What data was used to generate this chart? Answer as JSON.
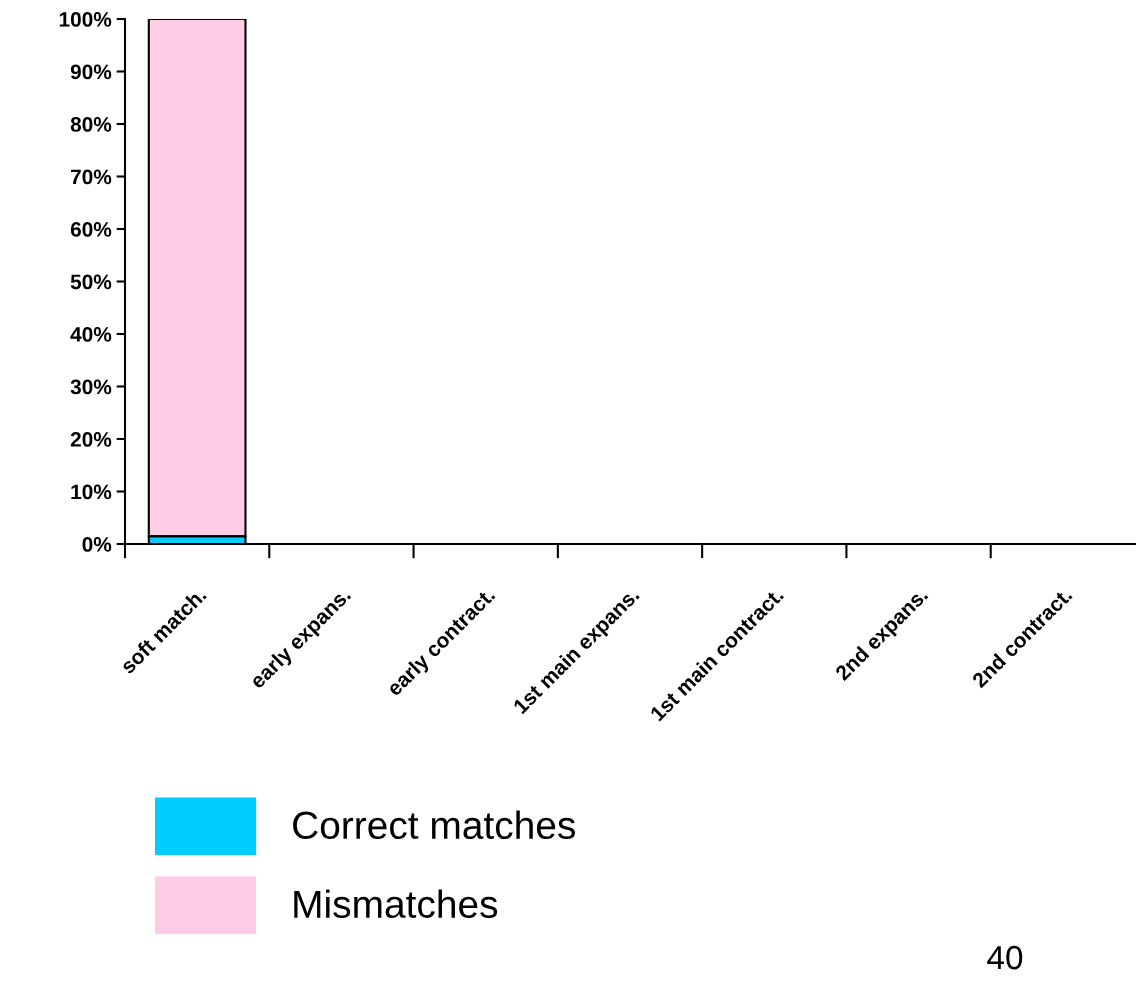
{
  "chart_data": {
    "type": "bar",
    "stacked": true,
    "categories": [
      "soft match.",
      "early expans.",
      "early contract.",
      "1st main expans.",
      "1st main contract.",
      "2nd expans.",
      "2nd contract."
    ],
    "series": [
      {
        "name": "Correct matches",
        "color": "#00ccff",
        "values": [
          1.5,
          null,
          null,
          null,
          null,
          null,
          null
        ]
      },
      {
        "name": "Mismatches",
        "color": "#ffcce6",
        "values": [
          98.5,
          null,
          null,
          null,
          null,
          null,
          null
        ]
      }
    ],
    "ylim": [
      0,
      100
    ],
    "yticks": [
      {
        "value": 0,
        "label": "0%"
      },
      {
        "value": 10,
        "label": "10%"
      },
      {
        "value": 20,
        "label": "20%"
      },
      {
        "value": 30,
        "label": "30%"
      },
      {
        "value": 40,
        "label": "40%"
      },
      {
        "value": 50,
        "label": "50%"
      },
      {
        "value": 60,
        "label": "60%"
      },
      {
        "value": 70,
        "label": "70%"
      },
      {
        "value": 80,
        "label": "80%"
      },
      {
        "value": 90,
        "label": "90%"
      },
      {
        "value": 100,
        "label": "100%"
      }
    ],
    "legend": "bottom left",
    "grid": false,
    "annotations": [
      "40"
    ]
  }
}
